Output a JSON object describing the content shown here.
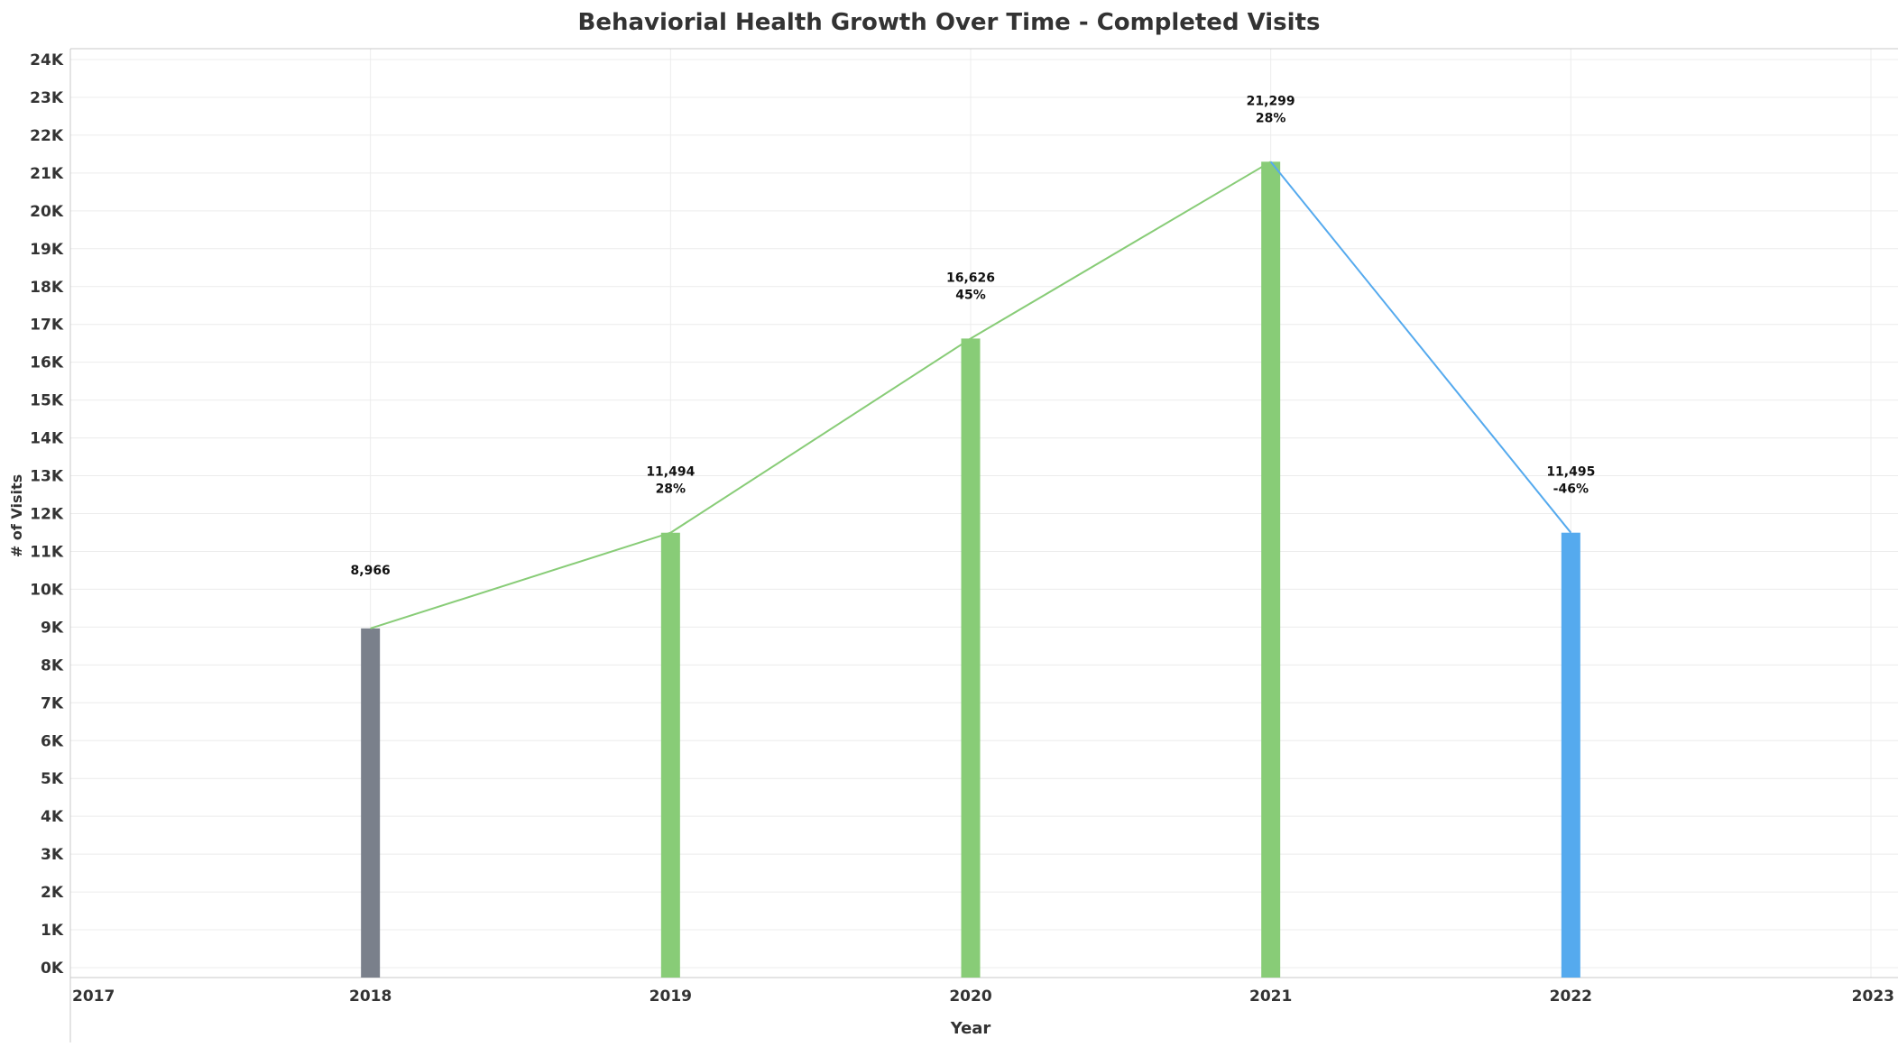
{
  "colors": {
    "gridline": "#ececec",
    "axis_line": "#c8c8c8",
    "text": "#333333",
    "label_text": "#111111",
    "base_bar": "#7a808b",
    "growth_bar": "#88cc77",
    "decline_bar": "#55aaee"
  },
  "chart_data": {
    "type": "bar",
    "title": "Behaviorial Health Growth Over Time - Completed Visits",
    "xlabel": "Year",
    "ylabel": "# of Visits",
    "x_ticks": [
      "2017",
      "2018",
      "2019",
      "2020",
      "2021",
      "2022",
      "2023"
    ],
    "x_range": [
      2017,
      2023
    ],
    "ylim": [
      0,
      24000
    ],
    "y_ticks": [
      "0K",
      "1K",
      "2K",
      "3K",
      "4K",
      "5K",
      "6K",
      "7K",
      "8K",
      "9K",
      "10K",
      "11K",
      "12K",
      "13K",
      "14K",
      "15K",
      "16K",
      "17K",
      "18K",
      "19K",
      "20K",
      "21K",
      "22K",
      "23K",
      "24K"
    ],
    "grid": true,
    "overlay": "line connecting bar tops",
    "series": [
      {
        "values": [
          {
            "year": 2018,
            "value": 8966,
            "label": "8,966",
            "change": "",
            "status": "base"
          },
          {
            "year": 2019,
            "value": 11494,
            "label": "11,494",
            "change": "28%",
            "status": "growth"
          },
          {
            "year": 2020,
            "value": 16626,
            "label": "16,626",
            "change": "45%",
            "status": "growth"
          },
          {
            "year": 2021,
            "value": 21299,
            "label": "21,299",
            "change": "28%",
            "status": "growth"
          },
          {
            "year": 2022,
            "value": 11495,
            "label": "11,495",
            "change": "-46%",
            "status": "decline"
          }
        ]
      }
    ]
  }
}
